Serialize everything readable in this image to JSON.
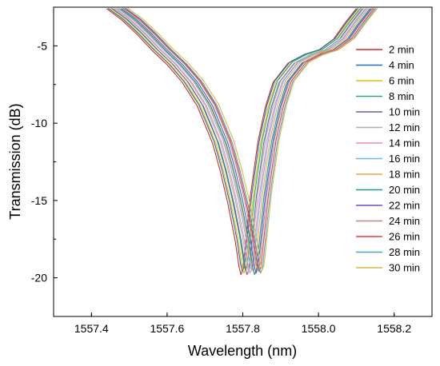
{
  "chart_data": {
    "type": "line",
    "title": "",
    "xlabel": "Wavelength (nm)",
    "ylabel": "Transmission (dB)",
    "xlim": [
      1557.3,
      1558.3
    ],
    "ylim": [
      -22.5,
      -2.5
    ],
    "xticks": [
      1557.4,
      1557.6,
      1557.8,
      1558.0,
      1558.2
    ],
    "xtick_labels": [
      "1557.4",
      "1557.6",
      "1557.8",
      "1558.0",
      "1558.2"
    ],
    "yticks": [
      -5,
      -10,
      -15,
      -20
    ],
    "ytick_labels": [
      "-5",
      "-10",
      "-15",
      "-20"
    ],
    "grid": false,
    "legend_position": "right",
    "base_curve": {
      "x": [
        1557.44,
        1557.48,
        1557.52,
        1557.56,
        1557.6,
        1557.64,
        1557.68,
        1557.72,
        1557.74,
        1557.76,
        1557.78,
        1557.79,
        1557.795,
        1557.8,
        1557.81,
        1557.82,
        1557.84,
        1557.86,
        1557.88,
        1557.92,
        1557.96,
        1558.0,
        1558.04,
        1558.07,
        1558.1
      ],
      "y": [
        -2.5,
        -3.2,
        -4.1,
        -5.1,
        -6.0,
        -7.1,
        -8.6,
        -10.9,
        -12.6,
        -14.6,
        -17.0,
        -18.6,
        -19.1,
        -18.8,
        -16.5,
        -14.2,
        -10.8,
        -8.6,
        -7.1,
        -5.9,
        -5.4,
        -5.1,
        -4.4,
        -3.4,
        -2.5
      ]
    },
    "series": [
      {
        "name": "2 min",
        "color": "#d62728",
        "x_shift_nm": 0.0,
        "min_db": -19.8
      },
      {
        "name": "4 min",
        "color": "#1f6fb4",
        "x_shift_nm": 0.004,
        "min_db": -19.6
      },
      {
        "name": "6 min",
        "color": "#e2c000",
        "x_shift_nm": 0.008,
        "min_db": -19.7
      },
      {
        "name": "8 min",
        "color": "#2ca87a",
        "x_shift_nm": 0.012,
        "min_db": -19.5
      },
      {
        "name": "10 min",
        "color": "#6b5fa8",
        "x_shift_nm": 0.016,
        "min_db": -19.8
      },
      {
        "name": "12 min",
        "color": "#b0b0b0",
        "x_shift_nm": 0.02,
        "min_db": -19.6
      },
      {
        "name": "14 min",
        "color": "#ee8bb0",
        "x_shift_nm": 0.024,
        "min_db": -19.7
      },
      {
        "name": "16 min",
        "color": "#6fb7e8",
        "x_shift_nm": 0.028,
        "min_db": -19.5
      },
      {
        "name": "18 min",
        "color": "#f0a04a",
        "x_shift_nm": 0.032,
        "min_db": -19.6
      },
      {
        "name": "20 min",
        "color": "#1b9a99",
        "x_shift_nm": 0.036,
        "min_db": -19.8
      },
      {
        "name": "22 min",
        "color": "#5a55c8",
        "x_shift_nm": 0.04,
        "min_db": -19.7
      },
      {
        "name": "24 min",
        "color": "#b88a82",
        "x_shift_nm": 0.044,
        "min_db": -19.5
      },
      {
        "name": "26 min",
        "color": "#e03b3b",
        "x_shift_nm": 0.048,
        "min_db": -19.6
      },
      {
        "name": "28 min",
        "color": "#4aa8b8",
        "x_shift_nm": 0.052,
        "min_db": -19.7
      },
      {
        "name": "30 min",
        "color": "#d8b84a",
        "x_shift_nm": 0.056,
        "min_db": -19.5
      }
    ]
  }
}
